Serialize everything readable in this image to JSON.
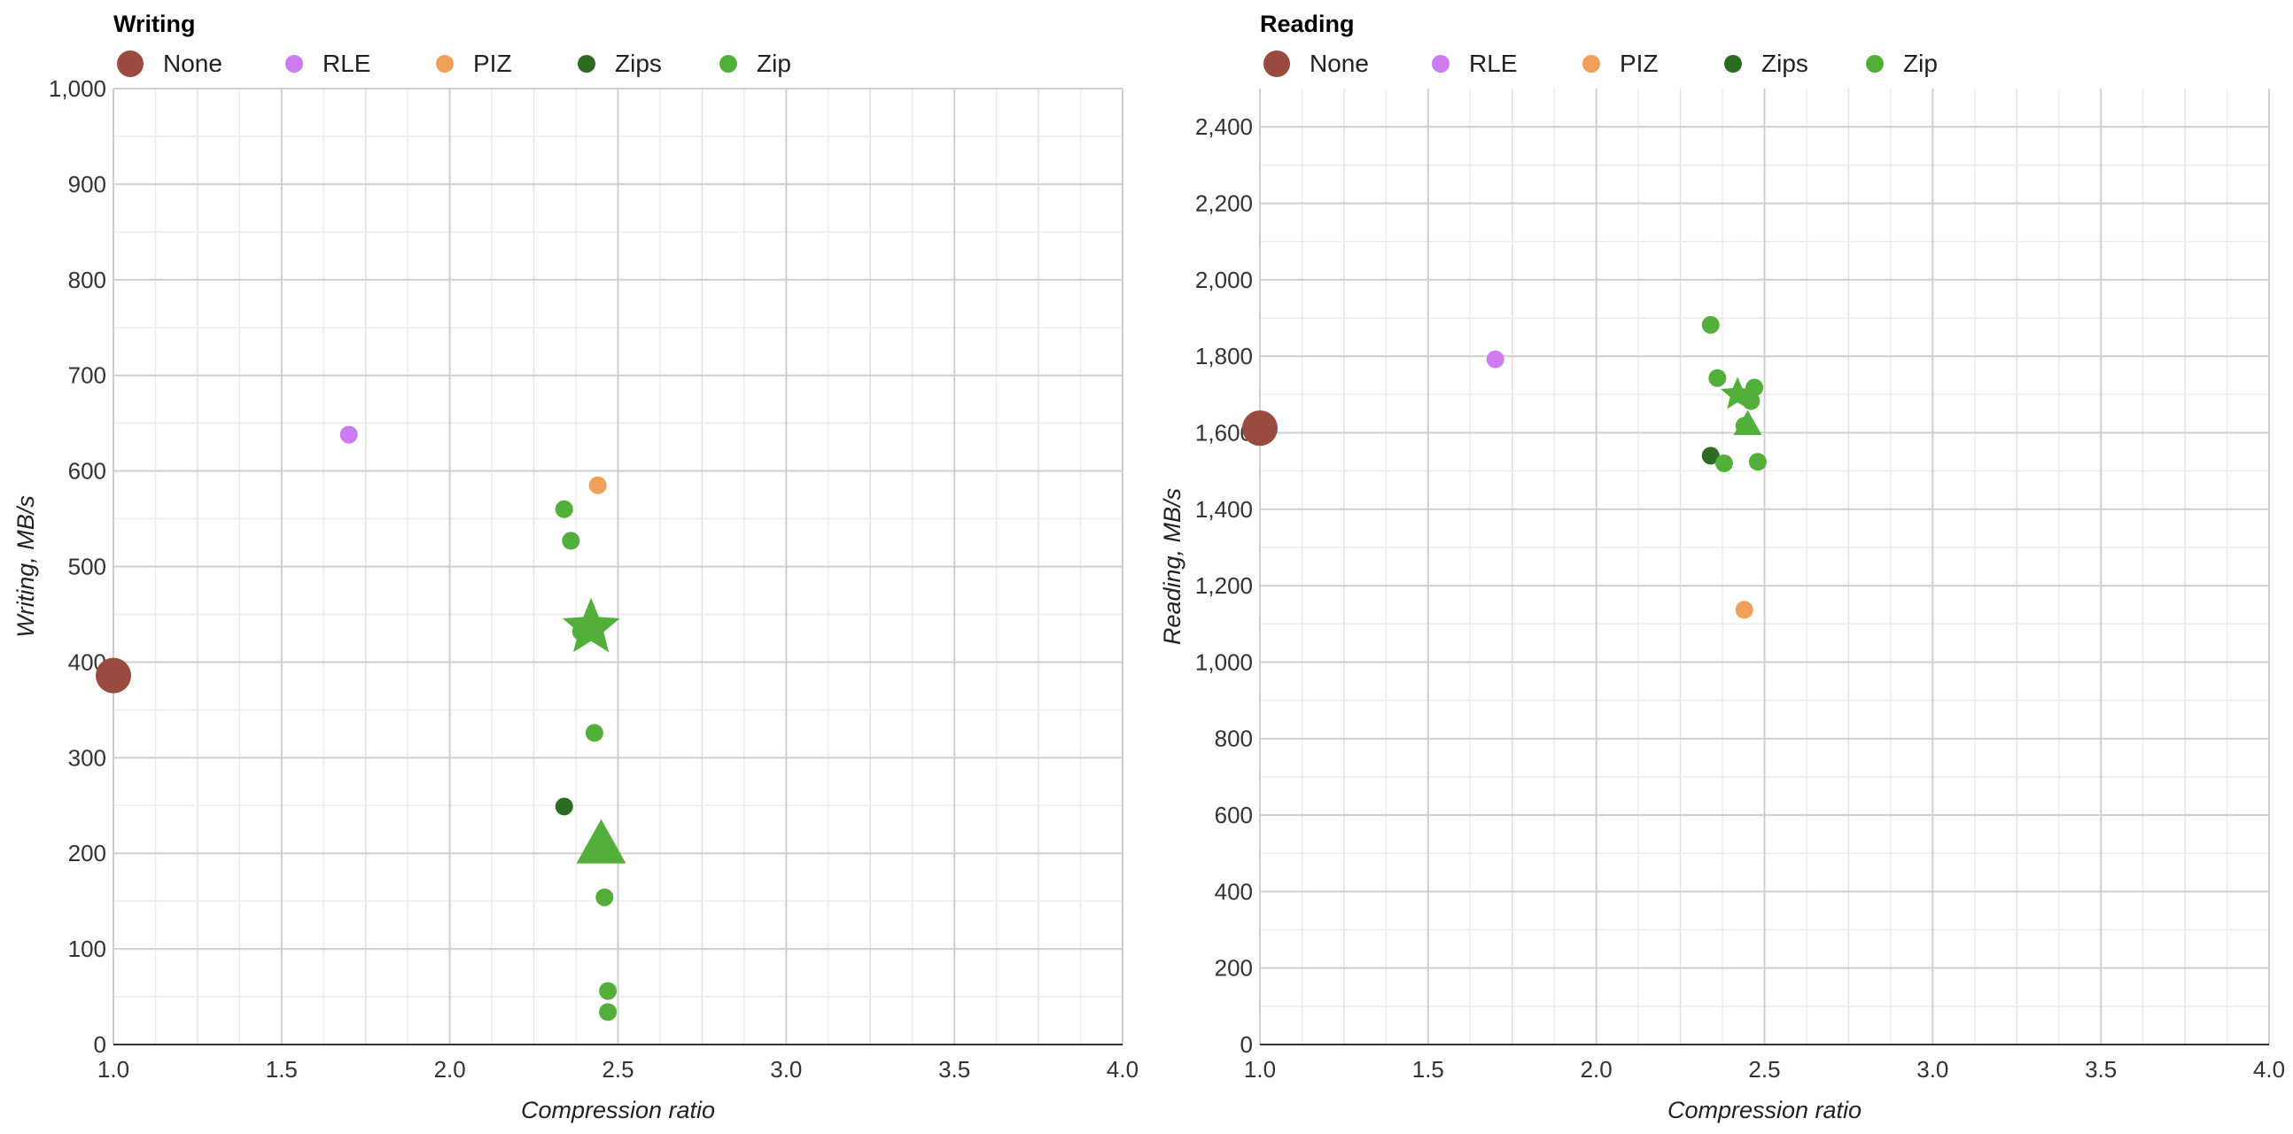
{
  "chart_data": [
    {
      "type": "scatter",
      "title": "Writing",
      "xlabel": "Compression ratio",
      "ylabel": "Writing, MB/s",
      "xlim": [
        1.0,
        4.0
      ],
      "ylim": [
        0,
        1000
      ],
      "xticks": [
        1.0,
        1.5,
        2.0,
        2.5,
        3.0,
        3.5,
        4.0
      ],
      "xtick_labels": [
        "1.0",
        "1.5",
        "2.0",
        "2.5",
        "3.0",
        "3.5",
        "4.0"
      ],
      "yticks": [
        0,
        100,
        200,
        300,
        400,
        500,
        600,
        700,
        800,
        900,
        1000
      ],
      "ytick_labels": [
        "0",
        "100",
        "200",
        "300",
        "400",
        "500",
        "600",
        "700",
        "800",
        "900",
        "1,000"
      ],
      "grid": true,
      "legend_position": "top-left",
      "series": [
        {
          "name": "None",
          "color": "#9a4a3e",
          "points": [
            {
              "x": 1.0,
              "y": 386,
              "marker": "circle-large"
            }
          ]
        },
        {
          "name": "RLE",
          "color": "#cc7bf0",
          "points": [
            {
              "x": 1.7,
              "y": 638,
              "marker": "circle"
            }
          ]
        },
        {
          "name": "PIZ",
          "color": "#f0a058",
          "points": [
            {
              "x": 2.44,
              "y": 585,
              "marker": "circle"
            }
          ]
        },
        {
          "name": "Zips",
          "color": "#2e6b22",
          "points": [
            {
              "x": 2.34,
              "y": 249,
              "marker": "circle"
            }
          ]
        },
        {
          "name": "Zip",
          "color": "#52b03a",
          "points": [
            {
              "x": 2.34,
              "y": 560,
              "marker": "circle"
            },
            {
              "x": 2.36,
              "y": 527,
              "marker": "circle"
            },
            {
              "x": 2.42,
              "y": 436,
              "marker": "star"
            },
            {
              "x": 2.39,
              "y": 432,
              "marker": "circle"
            },
            {
              "x": 2.43,
              "y": 326,
              "marker": "circle"
            },
            {
              "x": 2.45,
              "y": 208,
              "marker": "triangle"
            },
            {
              "x": 2.46,
              "y": 154,
              "marker": "circle"
            },
            {
              "x": 2.47,
              "y": 56,
              "marker": "circle"
            },
            {
              "x": 2.47,
              "y": 34,
              "marker": "circle"
            }
          ]
        }
      ]
    },
    {
      "type": "scatter",
      "title": "Reading",
      "xlabel": "Compression ratio",
      "ylabel": "Reading, MB/s",
      "xlim": [
        1.0,
        4.0
      ],
      "ylim": [
        0,
        2500
      ],
      "xticks": [
        1.0,
        1.5,
        2.0,
        2.5,
        3.0,
        3.5,
        4.0
      ],
      "xtick_labels": [
        "1.0",
        "1.5",
        "2.0",
        "2.5",
        "3.0",
        "3.5",
        "4.0"
      ],
      "yticks": [
        0,
        200,
        400,
        600,
        800,
        1000,
        1200,
        1400,
        1600,
        1800,
        2000,
        2200,
        2400
      ],
      "ytick_labels": [
        "0",
        "200",
        "400",
        "600",
        "800",
        "1,000",
        "1,200",
        "1,400",
        "1,600",
        "1,800",
        "2,000",
        "2,200",
        "2,400"
      ],
      "grid": true,
      "legend_position": "top-left",
      "series": [
        {
          "name": "None",
          "color": "#9a4a3e",
          "points": [
            {
              "x": 1.0,
              "y": 1612,
              "marker": "circle-large"
            }
          ]
        },
        {
          "name": "RLE",
          "color": "#cc7bf0",
          "points": [
            {
              "x": 1.7,
              "y": 1792,
              "marker": "circle"
            }
          ]
        },
        {
          "name": "PIZ",
          "color": "#f0a058",
          "points": [
            {
              "x": 2.44,
              "y": 1137,
              "marker": "circle"
            }
          ]
        },
        {
          "name": "Zips",
          "color": "#2e6b22",
          "points": [
            {
              "x": 2.34,
              "y": 1540,
              "marker": "circle"
            }
          ]
        },
        {
          "name": "Zip",
          "color": "#52b03a",
          "points": [
            {
              "x": 2.34,
              "y": 1882,
              "marker": "circle"
            },
            {
              "x": 2.36,
              "y": 1743,
              "marker": "circle"
            },
            {
              "x": 2.42,
              "y": 1700,
              "marker": "star"
            },
            {
              "x": 2.47,
              "y": 1718,
              "marker": "circle"
            },
            {
              "x": 2.46,
              "y": 1683,
              "marker": "circle"
            },
            {
              "x": 2.45,
              "y": 1620,
              "marker": "triangle"
            },
            {
              "x": 2.44,
              "y": 1618,
              "marker": "circle"
            },
            {
              "x": 2.38,
              "y": 1520,
              "marker": "circle"
            },
            {
              "x": 2.48,
              "y": 1524,
              "marker": "circle"
            }
          ]
        }
      ]
    }
  ]
}
